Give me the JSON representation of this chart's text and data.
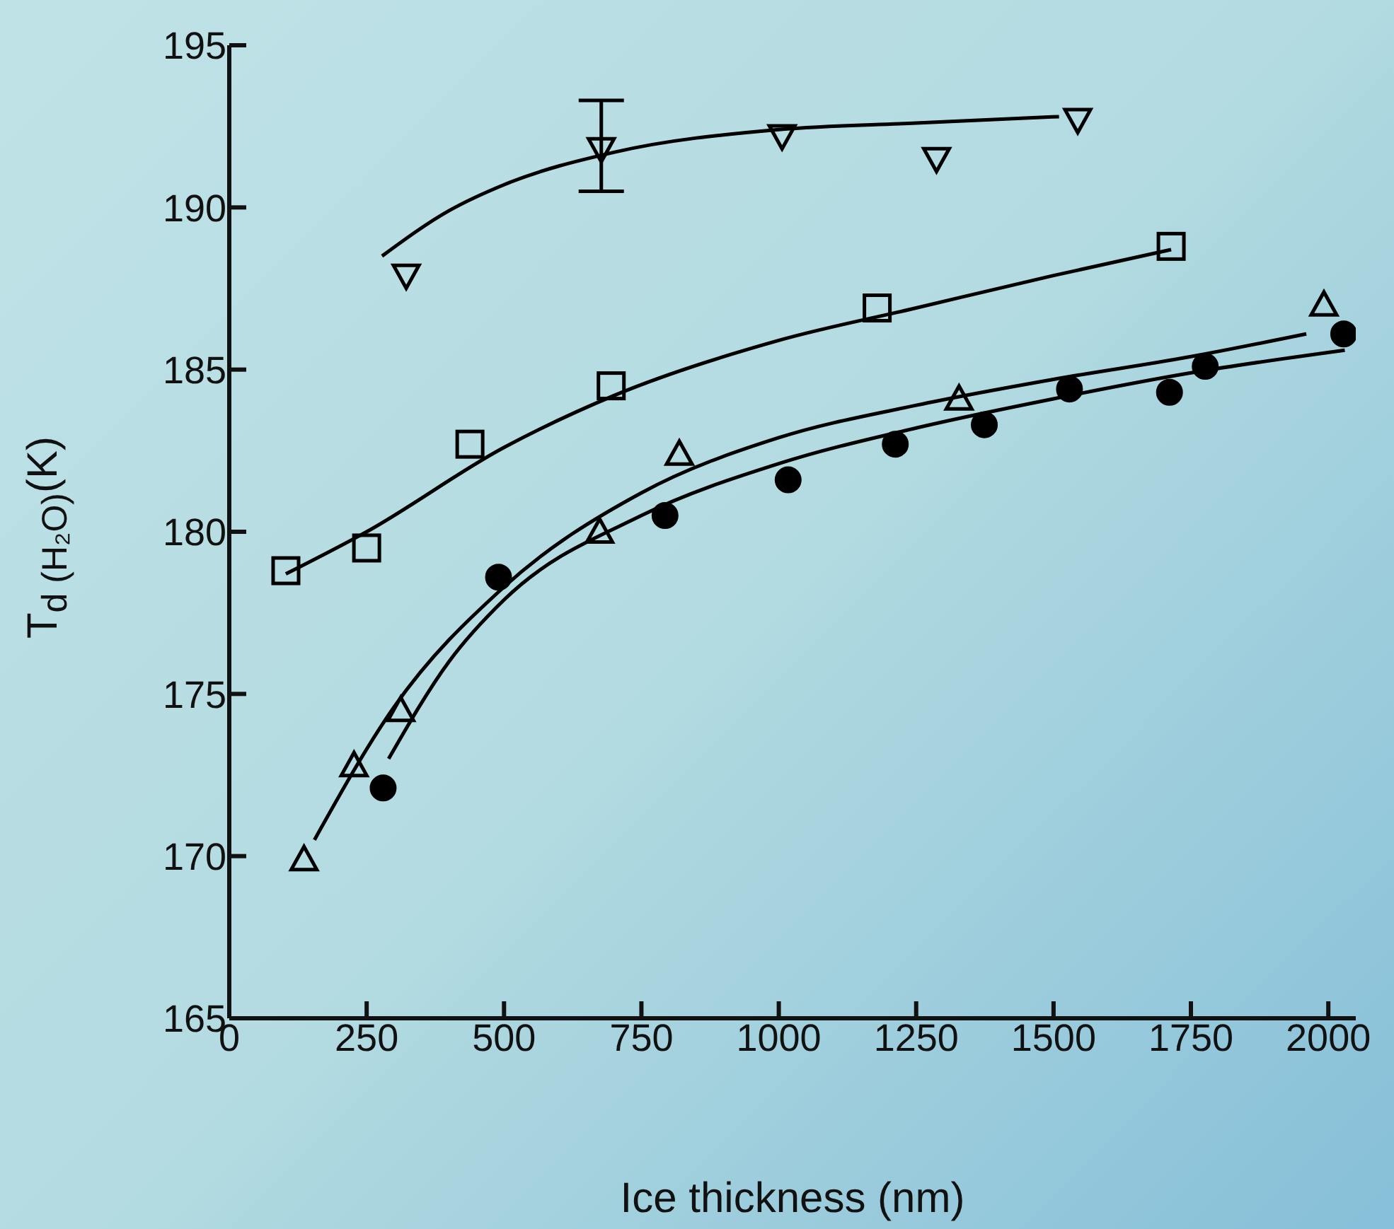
{
  "chart_data": {
    "type": "scatter",
    "xlabel": "Ice thickness (nm)",
    "ylabel": "T$_{d (H₂O)}$(K)",
    "xlim": [
      0,
      2050
    ],
    "xticks": [
      0,
      250,
      500,
      750,
      1000,
      1250,
      1500,
      1750,
      2000
    ],
    "ylim": [
      165,
      195
    ],
    "yticks": [
      165,
      170,
      175,
      180,
      185,
      190,
      195
    ],
    "legend": false,
    "series": [
      {
        "marker": "triangle-down",
        "color": "#000000",
        "x": [
          322,
          677,
          1006,
          1287,
          1544
        ],
        "values": [
          187.9,
          191.8,
          192.2,
          191.5,
          192.7
        ],
        "errors": [
          null,
          [
            190.5,
            193.3
          ],
          null,
          null,
          null
        ]
      },
      {
        "marker": "square",
        "color": "#000000",
        "x": [
          103,
          250,
          438,
          695,
          1179,
          1714
        ],
        "values": [
          178.8,
          179.5,
          182.7,
          184.5,
          186.9,
          188.8
        ]
      },
      {
        "marker": "triangle",
        "color": "#000000",
        "x": [
          136,
          227,
          312,
          674,
          819,
          1328,
          1992
        ],
        "values": [
          169.9,
          172.8,
          174.5,
          180.0,
          182.4,
          184.1,
          187.0
        ]
      },
      {
        "marker": "circle",
        "color": "#000000",
        "x": [
          280,
          490,
          793,
          1017,
          1212,
          1374,
          1529,
          1711,
          1776,
          2028
        ],
        "values": [
          172.1,
          178.6,
          180.5,
          181.6,
          182.7,
          183.3,
          184.4,
          184.3,
          185.1,
          186.1
        ]
      },
      {
        "type": "line",
        "marker": "none",
        "line_style": "solid",
        "color": "#000000",
        "x": [
          278,
          400,
          500,
          700,
          1000,
          1250,
          1510
        ],
        "values": [
          188.5,
          189.9,
          190.7,
          191.7,
          192.4,
          192.6,
          192.8
        ]
      },
      {
        "type": "line",
        "marker": "none",
        "line_style": "solid",
        "color": "#000000",
        "x": [
          103,
          250,
          500,
          700,
          1000,
          1250,
          1500,
          1714
        ],
        "values": [
          178.7,
          180.0,
          182.6,
          184.2,
          185.9,
          186.9,
          187.9,
          188.7
        ]
      },
      {
        "type": "line",
        "marker": "none",
        "line_style": "solid",
        "color": "#000000",
        "x": [
          155,
          300,
          500,
          750,
          1000,
          1250,
          1500,
          1750,
          1960
        ],
        "values": [
          170.5,
          174.6,
          178.3,
          181.2,
          182.9,
          183.9,
          184.7,
          185.4,
          186.1
        ]
      },
      {
        "type": "line",
        "marker": "none",
        "line_style": "solid",
        "color": "#000000",
        "x": [
          290,
          400,
          500,
          750,
          1000,
          1250,
          1500,
          1750,
          2030
        ],
        "values": [
          173.0,
          176.0,
          177.9,
          180.5,
          182.1,
          183.2,
          184.1,
          184.9,
          185.6
        ]
      }
    ]
  }
}
